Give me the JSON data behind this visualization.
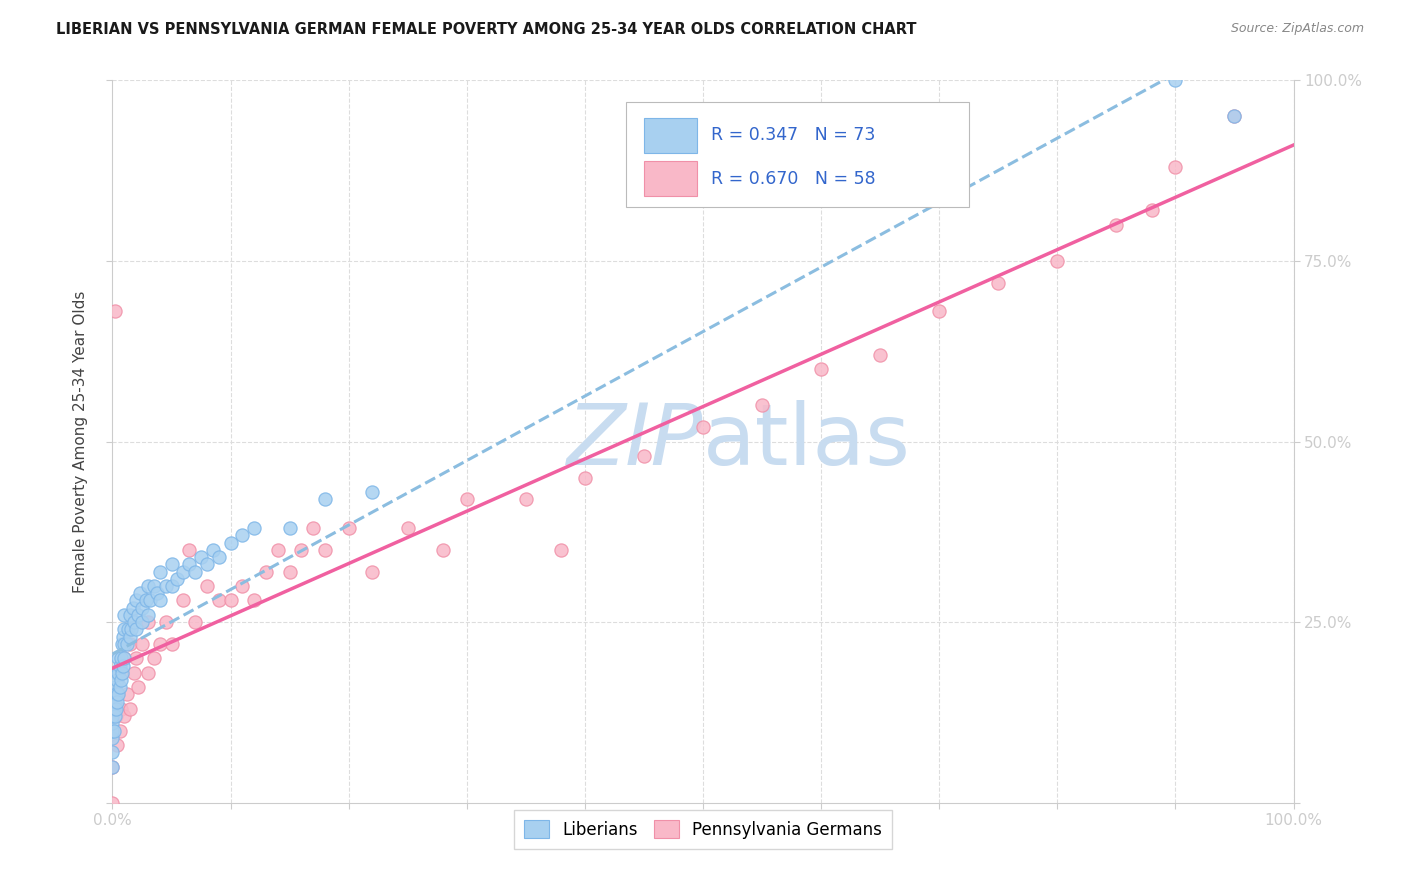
{
  "title": "LIBERIAN VS PENNSYLVANIA GERMAN FEMALE POVERTY AMONG 25-34 YEAR OLDS CORRELATION CHART",
  "source": "Source: ZipAtlas.com",
  "ylabel": "Female Poverty Among 25-34 Year Olds",
  "xlim": [
    0,
    1.0
  ],
  "ylim": [
    0,
    1.0
  ],
  "color_liberian": "#A8D0F0",
  "color_liberian_edge": "#7EB6E8",
  "color_liberian_line": "#8BBDE0",
  "color_pa_german": "#F9B8C8",
  "color_pa_german_edge": "#F090A8",
  "color_pa_german_line": "#F060A0",
  "r1": 0.347,
  "n1": 73,
  "r2": 0.67,
  "n2": 58,
  "watermark_color": "#C8DCF0",
  "title_color": "#1a1a1a",
  "source_color": "#888888",
  "axis_label_color": "#3366CC",
  "ylabel_color": "#444444",
  "grid_color": "#DDDDDD",
  "spine_color": "#CCCCCC",
  "liberian_x": [
    0.0,
    0.0,
    0.0,
    0.0,
    0.0,
    0.0,
    0.0,
    0.0,
    0.001,
    0.001,
    0.002,
    0.002,
    0.002,
    0.003,
    0.003,
    0.003,
    0.004,
    0.004,
    0.005,
    0.005,
    0.005,
    0.006,
    0.006,
    0.007,
    0.007,
    0.008,
    0.008,
    0.009,
    0.009,
    0.01,
    0.01,
    0.01,
    0.01,
    0.012,
    0.013,
    0.015,
    0.015,
    0.016,
    0.017,
    0.018,
    0.02,
    0.02,
    0.022,
    0.023,
    0.025,
    0.025,
    0.028,
    0.03,
    0.03,
    0.032,
    0.035,
    0.038,
    0.04,
    0.04,
    0.045,
    0.05,
    0.05,
    0.055,
    0.06,
    0.065,
    0.07,
    0.075,
    0.08,
    0.085,
    0.09,
    0.1,
    0.11,
    0.12,
    0.15,
    0.18,
    0.22,
    0.9,
    0.95
  ],
  "liberian_y": [
    0.05,
    0.07,
    0.09,
    0.1,
    0.11,
    0.12,
    0.13,
    0.15,
    0.1,
    0.13,
    0.12,
    0.14,
    0.16,
    0.13,
    0.15,
    0.18,
    0.14,
    0.17,
    0.15,
    0.18,
    0.2,
    0.16,
    0.19,
    0.17,
    0.2,
    0.18,
    0.22,
    0.19,
    0.23,
    0.2,
    0.22,
    0.24,
    0.26,
    0.22,
    0.24,
    0.23,
    0.26,
    0.24,
    0.27,
    0.25,
    0.24,
    0.28,
    0.26,
    0.29,
    0.25,
    0.27,
    0.28,
    0.26,
    0.3,
    0.28,
    0.3,
    0.29,
    0.28,
    0.32,
    0.3,
    0.3,
    0.33,
    0.31,
    0.32,
    0.33,
    0.32,
    0.34,
    0.33,
    0.35,
    0.34,
    0.36,
    0.37,
    0.38,
    0.38,
    0.42,
    0.43,
    1.0,
    0.95
  ],
  "pa_german_x": [
    0.0,
    0.0,
    0.002,
    0.003,
    0.004,
    0.005,
    0.006,
    0.007,
    0.008,
    0.01,
    0.01,
    0.012,
    0.015,
    0.015,
    0.018,
    0.02,
    0.022,
    0.025,
    0.03,
    0.03,
    0.035,
    0.04,
    0.045,
    0.05,
    0.06,
    0.065,
    0.07,
    0.08,
    0.09,
    0.1,
    0.11,
    0.12,
    0.13,
    0.14,
    0.15,
    0.16,
    0.17,
    0.18,
    0.2,
    0.22,
    0.25,
    0.28,
    0.3,
    0.35,
    0.38,
    0.4,
    0.45,
    0.5,
    0.55,
    0.6,
    0.65,
    0.7,
    0.75,
    0.8,
    0.85,
    0.88,
    0.9,
    0.95
  ],
  "pa_german_y": [
    0.0,
    0.05,
    0.68,
    0.12,
    0.08,
    0.15,
    0.1,
    0.13,
    0.18,
    0.12,
    0.2,
    0.15,
    0.13,
    0.22,
    0.18,
    0.2,
    0.16,
    0.22,
    0.18,
    0.25,
    0.2,
    0.22,
    0.25,
    0.22,
    0.28,
    0.35,
    0.25,
    0.3,
    0.28,
    0.28,
    0.3,
    0.28,
    0.32,
    0.35,
    0.32,
    0.35,
    0.38,
    0.35,
    0.38,
    0.32,
    0.38,
    0.35,
    0.42,
    0.42,
    0.35,
    0.45,
    0.48,
    0.52,
    0.55,
    0.6,
    0.62,
    0.68,
    0.72,
    0.75,
    0.8,
    0.82,
    0.88,
    0.95
  ]
}
